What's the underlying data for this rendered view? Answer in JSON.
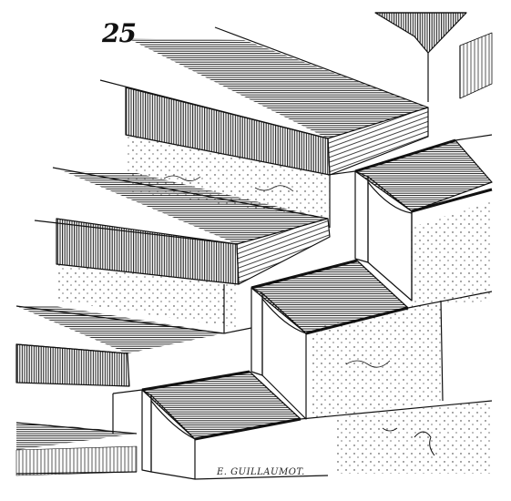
{
  "figure": {
    "number": "25",
    "signature": "E. GUILLAUMOT."
  },
  "colors": {
    "ink": "#111111",
    "paper": "#ffffff"
  }
}
